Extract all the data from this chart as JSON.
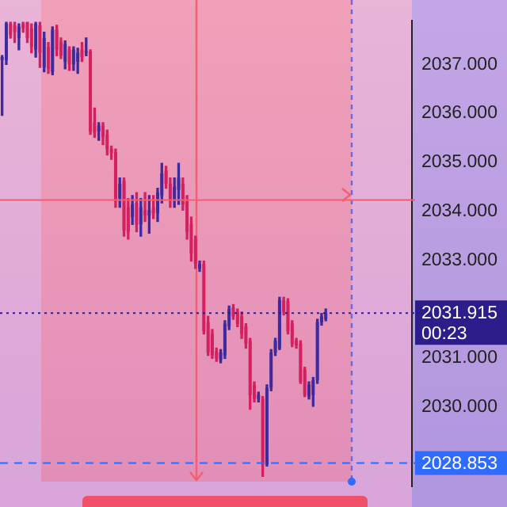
{
  "chart_data": {
    "type": "candlestick",
    "categories": [
      null,
      null,
      null,
      null,
      null,
      null,
      null,
      null,
      null,
      null,
      null,
      null,
      null,
      null,
      null,
      null,
      null,
      null,
      null,
      null,
      null,
      null,
      null,
      null,
      null,
      null,
      null,
      null,
      null,
      null,
      null,
      null,
      null,
      null,
      null,
      null,
      null,
      null,
      null,
      null,
      null,
      null,
      null,
      null,
      null,
      null,
      null,
      null,
      null,
      null,
      null,
      null,
      null,
      null,
      null,
      null,
      null,
      null,
      null,
      null,
      null,
      null,
      null,
      null,
      null,
      null,
      null,
      null,
      null,
      null,
      null,
      null,
      null,
      null,
      null,
      null,
      null,
      null,
      null,
      null,
      null,
      null,
      null,
      null,
      null,
      null,
      null,
      null,
      null,
      null,
      null,
      null,
      null,
      null,
      null,
      null,
      null,
      null
    ],
    "ohlc": [
      [
        2037.09,
        2037.18,
        2035.96,
        2037.15
      ],
      [
        2037.09,
        2037.86,
        2037.0,
        2037.83
      ],
      [
        2037.83,
        2037.86,
        2037.54,
        2037.6
      ],
      [
        2037.8,
        2037.86,
        2037.45,
        2037.66
      ],
      [
        2037.54,
        2037.83,
        2037.3,
        2037.77
      ],
      [
        2037.83,
        2037.86,
        2037.66,
        2037.74
      ],
      [
        2037.86,
        2037.86,
        2037.45,
        2037.54
      ],
      [
        2037.74,
        2037.83,
        2037.24,
        2037.36
      ],
      [
        2037.3,
        2037.86,
        2037.15,
        2037.83
      ],
      [
        2037.8,
        2037.86,
        2036.94,
        2037.24
      ],
      [
        2036.94,
        2037.66,
        2036.85,
        2037.54
      ],
      [
        2037.36,
        2037.45,
        2036.82,
        2036.91
      ],
      [
        2036.85,
        2037.77,
        2036.79,
        2037.71
      ],
      [
        2037.71,
        2037.8,
        2037.18,
        2037.3
      ],
      [
        2037.45,
        2037.54,
        2037.12,
        2037.18
      ],
      [
        2037.06,
        2037.48,
        2036.91,
        2037.42
      ],
      [
        2037.3,
        2037.36,
        2036.88,
        2037.0
      ],
      [
        2037.0,
        2037.36,
        2036.88,
        2037.3
      ],
      [
        2037.06,
        2037.33,
        2036.82,
        2037.24
      ],
      [
        2037.3,
        2037.45,
        2037.06,
        2037.15
      ],
      [
        2037.24,
        2037.54,
        2037.18,
        2037.27
      ],
      [
        2037.27,
        2037.3,
        2035.57,
        2035.63
      ],
      [
        2035.81,
        2036.11,
        2035.51,
        2035.6
      ],
      [
        2035.63,
        2035.81,
        2035.45,
        2035.75
      ],
      [
        2035.75,
        2035.81,
        2035.36,
        2035.51
      ],
      [
        2035.57,
        2035.66,
        2035.15,
        2035.27
      ],
      [
        2035.27,
        2035.33,
        2035.06,
        2035.18
      ],
      [
        2035.21,
        2035.27,
        2034.08,
        2034.2
      ],
      [
        2034.26,
        2034.68,
        2034.08,
        2034.56
      ],
      [
        2034.62,
        2034.68,
        2033.49,
        2033.61
      ],
      [
        2034.08,
        2034.26,
        2033.43,
        2033.58
      ],
      [
        2033.88,
        2034.32,
        2033.73,
        2034.14
      ],
      [
        2034.17,
        2034.38,
        2033.58,
        2033.73
      ],
      [
        2033.73,
        2034.26,
        2033.49,
        2034.08
      ],
      [
        2034.02,
        2034.38,
        2033.79,
        2033.91
      ],
      [
        2033.91,
        2034.32,
        2033.55,
        2034.02
      ],
      [
        2034.08,
        2034.32,
        2033.85,
        2033.96
      ],
      [
        2033.96,
        2034.47,
        2033.79,
        2034.38
      ],
      [
        2034.32,
        2034.98,
        2034.17,
        2034.77
      ],
      [
        2034.83,
        2034.92,
        2034.47,
        2034.56
      ],
      [
        2034.56,
        2034.68,
        2034.08,
        2034.23
      ],
      [
        2034.23,
        2034.68,
        2034.08,
        2034.5
      ],
      [
        2034.44,
        2034.98,
        2034.14,
        2034.68
      ],
      [
        2034.56,
        2034.68,
        2034.02,
        2034.14
      ],
      [
        2034.2,
        2034.32,
        2033.43,
        2033.58
      ],
      [
        2033.73,
        2033.88,
        2032.98,
        2033.13
      ],
      [
        2033.43,
        2033.49,
        2032.83,
        2032.92
      ],
      [
        2032.83,
        2032.98,
        2032.77,
        2032.92
      ],
      [
        2032.92,
        2032.98,
        2031.49,
        2031.55
      ],
      [
        2031.73,
        2031.85,
        2031.05,
        2031.11
      ],
      [
        2031.49,
        2031.58,
        2030.99,
        2031.05
      ],
      [
        2031.14,
        2031.2,
        2030.93,
        2030.99
      ],
      [
        2030.96,
        2031.17,
        2030.9,
        2031.11
      ],
      [
        2031.05,
        2031.76,
        2030.99,
        2031.7
      ],
      [
        2031.64,
        2032.06,
        2031.58,
        2032.0
      ],
      [
        2032.03,
        2032.09,
        2031.79,
        2031.85
      ],
      [
        2031.94,
        2032.0,
        2031.64,
        2031.7
      ],
      [
        2031.85,
        2031.94,
        2031.4,
        2031.49
      ],
      [
        2031.64,
        2031.7,
        2031.2,
        2031.29
      ],
      [
        2031.35,
        2031.4,
        2029.95,
        2030.24
      ],
      [
        2030.45,
        2030.51,
        2030.1,
        2030.16
      ],
      [
        2030.16,
        2030.3,
        2030.1,
        2030.24
      ],
      [
        2030.16,
        2030.21,
        2028.58,
        2028.82
      ],
      [
        2028.82,
        2030.45,
        2028.79,
        2030.39
      ],
      [
        2030.39,
        2031.17,
        2030.33,
        2031.11
      ],
      [
        2031.11,
        2031.4,
        2031.05,
        2031.35
      ],
      [
        2031.2,
        2032.24,
        2031.17,
        2032.18
      ],
      [
        2032.18,
        2032.24,
        2031.88,
        2031.94
      ],
      [
        2032.15,
        2032.21,
        2031.49,
        2031.55
      ],
      [
        2031.7,
        2031.76,
        2031.23,
        2031.29
      ],
      [
        2031.35,
        2031.4,
        2031.2,
        2031.26
      ],
      [
        2031.29,
        2031.35,
        2030.48,
        2030.51
      ],
      [
        2030.76,
        2030.81,
        2030.21,
        2030.24
      ],
      [
        2030.21,
        2030.51,
        2030.16,
        2030.45
      ],
      [
        2030.24,
        2030.6,
        2030.01,
        2030.54
      ],
      [
        2030.54,
        2031.79,
        2030.48,
        2031.73
      ],
      [
        2031.73,
        2031.91,
        2031.67,
        2031.85
      ],
      [
        2031.79,
        2032.0,
        2031.76,
        2031.915
      ],
      null,
      null,
      null,
      null,
      null,
      null,
      null,
      null,
      null,
      null,
      null,
      null,
      null,
      null,
      null,
      null,
      null,
      null,
      null,
      null
    ],
    "colors": [
      "#3d2a9c",
      "#3d2a9c",
      "#d4205f",
      "#d4205f",
      "#3d2a9c",
      "#d4205f",
      "#d4205f",
      "#d4205f",
      "#3d2a9c",
      "#d4205f",
      "#3d2a9c",
      "#d4205f",
      "#3d2a9c",
      "#d4205f",
      "#d4205f",
      "#3d2a9c",
      "#d4205f",
      "#3d2a9c",
      "#3d2a9c",
      "#d4205f",
      "#3d2a9c",
      "#d4205f",
      "#d4205f",
      "#3d2a9c",
      "#d4205f",
      "#d4205f",
      "#d4205f",
      "#d4205f",
      "#3d2a9c",
      "#d4205f",
      "#d4205f",
      "#3d2a9c",
      "#d4205f",
      "#3d2a9c",
      "#d4205f",
      "#3d2a9c",
      "#d4205f",
      "#3d2a9c",
      "#3d2a9c",
      "#d4205f",
      "#d4205f",
      "#3d2a9c",
      "#3d2a9c",
      "#d4205f",
      "#d4205f",
      "#d4205f",
      "#d4205f",
      "#3d2a9c",
      "#d4205f",
      "#d4205f",
      "#d4205f",
      "#d4205f",
      "#3d2a9c",
      "#3d2a9c",
      "#3d2a9c",
      "#d4205f",
      "#d4205f",
      "#d4205f",
      "#d4205f",
      "#d4205f",
      "#d4205f",
      "#3d2a9c",
      "#d4205f",
      "#3d2a9c",
      "#3d2a9c",
      "#3d2a9c",
      "#3d2a9c",
      "#d4205f",
      "#d4205f",
      "#d4205f",
      "#d4205f",
      "#d4205f",
      "#d4205f",
      "#3d2a9c",
      "#3d2a9c",
      "#3d2a9c",
      "#3d2a9c",
      "#3d2a9c",
      null,
      null,
      null,
      null,
      null,
      null,
      null,
      null,
      null,
      null,
      null,
      null,
      null,
      null,
      null,
      null,
      null,
      null,
      null,
      null
    ],
    "ylim": [
      2028.37,
      2037.9
    ],
    "yticks": [
      {
        "value": 2030,
        "label": "2030.000"
      },
      {
        "value": 2031,
        "label": "2031.000"
      },
      {
        "value": 2033,
        "label": "2033.000"
      },
      {
        "value": 2034,
        "label": "2034.000"
      },
      {
        "value": 2035,
        "label": "2035.000"
      },
      {
        "value": 2036,
        "label": "2036.000"
      },
      {
        "value": 2037,
        "label": "2037.000"
      }
    ],
    "tick_labels": "y",
    "ref_lines": [
      {
        "axis": "y",
        "value": 2031.915,
        "label": "2031.915\n00:23",
        "color": "#2c1d8a",
        "line_style": "dotted"
      },
      {
        "axis": "y",
        "value": 2028.853,
        "label": "2028.853",
        "color": "#2f6bff",
        "line_style": "dashed"
      },
      {
        "axis": "y",
        "value": 2034.23,
        "color": "#f06070",
        "line_style": "solid"
      }
    ]
  }
}
